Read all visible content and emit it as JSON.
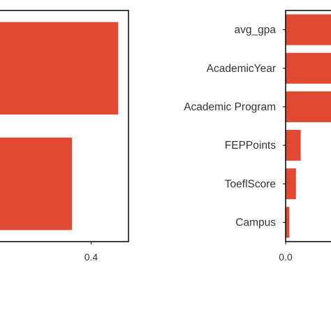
{
  "colors": {
    "bar": "#e04a33",
    "axis": "#000000",
    "text": "#333333"
  },
  "chart_data": [
    {
      "type": "bar",
      "orientation": "horizontal",
      "title": "",
      "xlabel": "",
      "ylabel": "",
      "categories": [
        "",
        ""
      ],
      "values": [
        0.516,
        0.318
      ],
      "xlim": [
        -0.02,
        0.56
      ],
      "xticks": [
        0.4
      ],
      "xtick_labels": [
        "0.4"
      ],
      "grid": false
    },
    {
      "type": "bar",
      "orientation": "horizontal",
      "title": "",
      "xlabel": "",
      "ylabel": "",
      "categories": [
        "avg_gpa",
        "AcademicYear",
        "Academic Program",
        "FEPPoints",
        "ToeflScore",
        "Campus"
      ],
      "values": [
        0.3,
        0.3,
        0.3,
        0.08,
        0.055,
        0.02
      ],
      "xlim": [
        0.0,
        0.3
      ],
      "xticks": [
        0.0
      ],
      "xtick_labels": [
        "0.0"
      ],
      "grid": false
    }
  ]
}
